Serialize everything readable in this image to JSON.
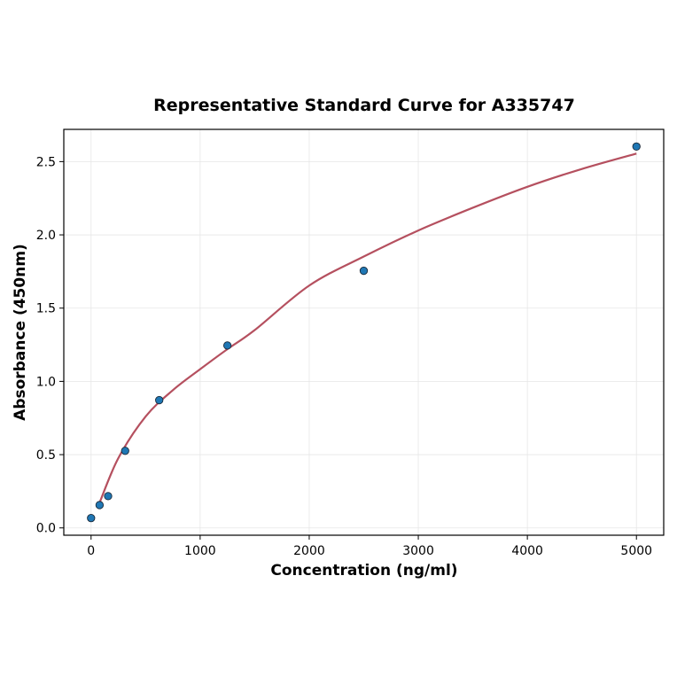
{
  "chart_data": {
    "type": "scatter",
    "title": "Representative Standard Curve for A335747",
    "xlabel": "Concentration (ng/ml)",
    "ylabel": "Absorbance (450nm)",
    "xlim": [
      -250,
      5250
    ],
    "ylim": [
      -0.05,
      2.72
    ],
    "xticks": [
      0,
      1000,
      2000,
      3000,
      4000,
      5000
    ],
    "yticks": [
      0.0,
      0.5,
      1.0,
      1.5,
      2.0,
      2.5
    ],
    "ytick_labels": [
      "0.0",
      "0.5",
      "1.0",
      "1.5",
      "2.0",
      "2.5"
    ],
    "grid": true,
    "points": {
      "x": [
        0,
        78.125,
        156.25,
        312.5,
        625,
        1250,
        2500,
        5000
      ],
      "y": [
        0.067,
        0.156,
        0.217,
        0.526,
        0.872,
        1.245,
        1.755,
        2.603
      ]
    },
    "fit_curve": {
      "x": [
        78,
        250,
        500,
        750,
        1000,
        1250,
        1500,
        2000,
        2500,
        3000,
        3500,
        4000,
        4500,
        5000
      ],
      "y": [
        0.172,
        0.476,
        0.76,
        0.94,
        1.083,
        1.22,
        1.35,
        1.654,
        1.852,
        2.03,
        2.185,
        2.328,
        2.45,
        2.555
      ]
    },
    "colors": {
      "points": "#1f77b4",
      "point_edge": "#1a2a3a",
      "curve": "#b5505f",
      "grid": "#e6e6e6"
    }
  }
}
